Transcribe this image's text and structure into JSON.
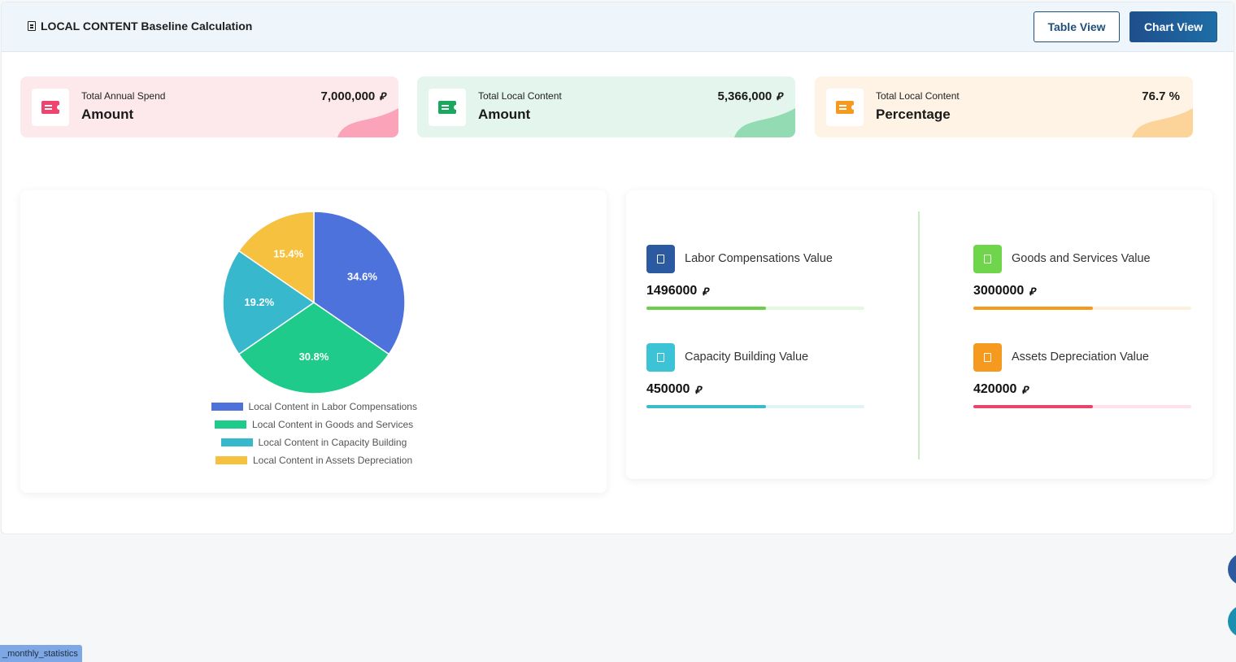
{
  "header": {
    "title": "LOCAL CONTENT Baseline Calculation",
    "table_view_label": "Table View",
    "chart_view_label": "Chart View"
  },
  "stats": [
    {
      "label_top": "Total Annual Spend",
      "label_main": "Amount",
      "value": "7,000,000",
      "currency": "⃁",
      "accent": "#f0436d",
      "bg": "#fde9ec"
    },
    {
      "label_top": "Total Local Content",
      "label_main": "Amount",
      "value": "5,366,000",
      "currency": "⃁",
      "accent": "#1aa85f",
      "bg": "#e3f5ec"
    },
    {
      "label_top": "Total Local Content",
      "label_main": "Percentage",
      "value": "76.7 %",
      "currency": "",
      "accent": "#f59a1e",
      "bg": "#fef3e4"
    }
  ],
  "chart_data": {
    "type": "pie",
    "categories": [
      "Local Content in Labor Compensations",
      "Local Content in Goods and Services",
      "Local Content in Capacity Building",
      "Local Content in Assets Depreciation"
    ],
    "values": [
      34.6,
      30.8,
      19.2,
      15.4
    ],
    "labels": [
      "34.6%",
      "30.8%",
      "19.2%",
      "15.4%"
    ],
    "colors": [
      "#4e72dc",
      "#1ecb8a",
      "#38b8cc",
      "#f5c13e"
    ],
    "legend_position": "bottom"
  },
  "values_panel": {
    "items": [
      {
        "name": "Labor Compensations Value",
        "value": "1496000",
        "currency": "⃁",
        "progress": 0.55,
        "icon_color": "#2c5aa0",
        "bar_color": "#6ccf4a",
        "track_color": "#e6f7e1"
      },
      {
        "name": "Goods and Services Value",
        "value": "3000000",
        "currency": "⃁",
        "progress": 0.55,
        "icon_color": "#6fd54a",
        "bar_color": "#f59a1e",
        "track_color": "#fdf0dd"
      },
      {
        "name": "Capacity Building Value",
        "value": "450000",
        "currency": "⃁",
        "progress": 0.55,
        "icon_color": "#3cc4d6",
        "bar_color": "#3cbccb",
        "track_color": "#dff4f5"
      },
      {
        "name": "Assets Depreciation Value",
        "value": "420000",
        "currency": "⃁",
        "progress": 0.55,
        "icon_color": "#f59a1e",
        "bar_color": "#e8456b",
        "track_color": "#fde3e9"
      }
    ]
  },
  "footer_tag": "_monthly_statistics"
}
